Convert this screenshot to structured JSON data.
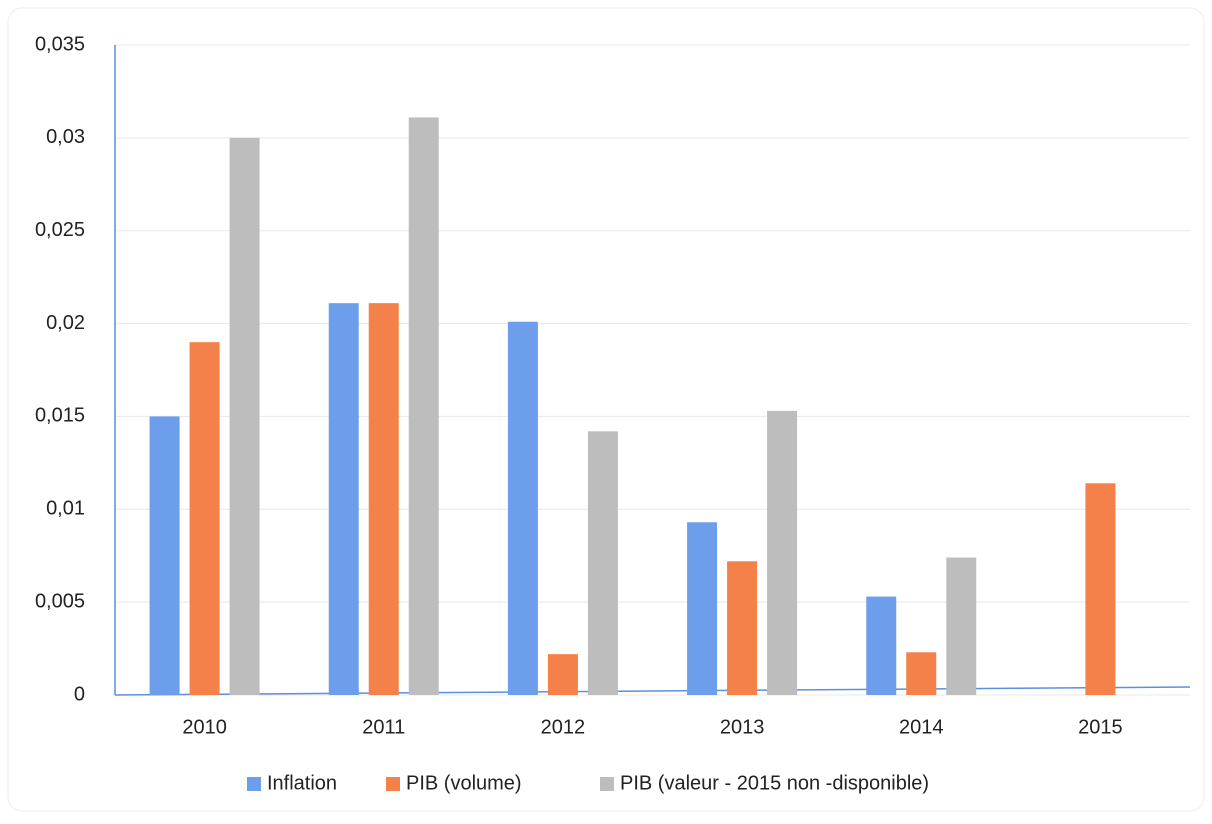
{
  "chart_data": {
    "type": "bar",
    "categories": [
      "2010",
      "2011",
      "2012",
      "2013",
      "2014",
      "2015"
    ],
    "series": [
      {
        "name": "Inflation",
        "color": "#6d9eeb",
        "values": [
          0.015,
          0.0211,
          0.0201,
          0.0093,
          0.0053,
          null
        ]
      },
      {
        "name": "PIB (volume)",
        "color": "#f4804a",
        "values": [
          0.019,
          0.0211,
          0.0022,
          0.0072,
          0.0023,
          0.0114
        ]
      },
      {
        "name": "PIB (valeur - 2015 non -disponible)",
        "color": "#bdbdbd",
        "values": [
          0.03,
          0.0311,
          0.0142,
          0.0153,
          0.0074,
          null
        ]
      }
    ],
    "ylim": [
      0,
      0.035
    ],
    "yticks": [
      0,
      {
        "value": 0.005,
        "label": "0,005"
      },
      {
        "value": 0.01,
        "label": "0,01"
      },
      {
        "value": 0.015,
        "label": "0,015"
      },
      {
        "value": 0.02,
        "label": "0,02"
      },
      {
        "value": 0.025,
        "label": "0,025"
      },
      {
        "value": 0.03,
        "label": "0,03"
      },
      {
        "value": 0.035,
        "label": "0,035"
      }
    ],
    "grid": true,
    "legend": "bottom"
  }
}
